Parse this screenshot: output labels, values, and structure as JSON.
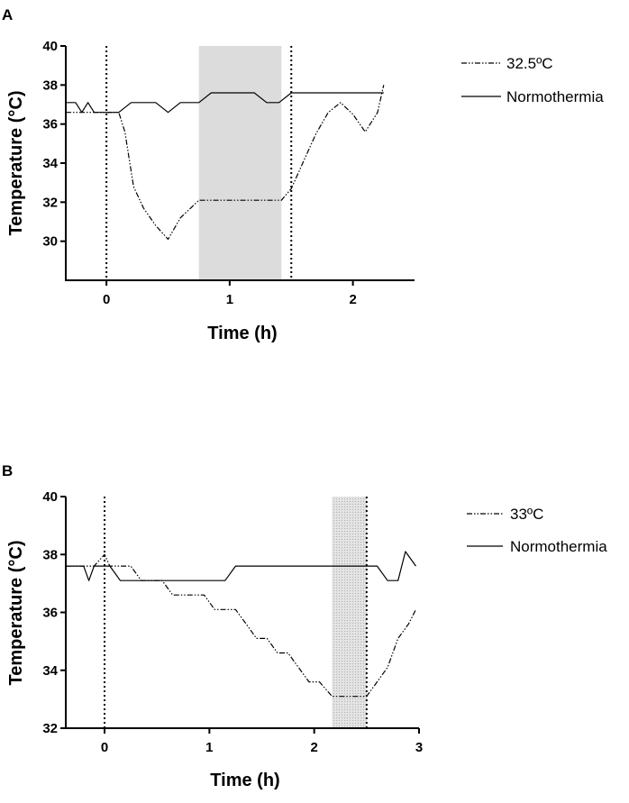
{
  "panels": [
    {
      "label": "A",
      "chart_data": {
        "type": "line",
        "title": "",
        "xlabel": "Time (h)",
        "ylabel": "Temperature (°C)",
        "xlim": [
          -0.33,
          2.5
        ],
        "ylim": [
          28,
          40
        ],
        "xticks": [
          0,
          1,
          2
        ],
        "yticks": [
          30,
          32,
          34,
          36,
          38,
          40
        ],
        "vlines": [
          0,
          1.5
        ],
        "shade": {
          "x0": 0.75,
          "x1": 1.42,
          "color": "#dcdcdc",
          "pattern": "solid"
        },
        "series": [
          {
            "name": "32.5ºC",
            "style": "dashdot",
            "x": [
              -0.33,
              0.1,
              0.15,
              0.22,
              0.3,
              0.4,
              0.5,
              0.6,
              0.7,
              0.75,
              0.85,
              1.0,
              1.2,
              1.42,
              1.5,
              1.55,
              1.6,
              1.7,
              1.8,
              1.9,
              2.0,
              2.1,
              2.2,
              2.25
            ],
            "values": [
              36.6,
              36.6,
              35.6,
              32.8,
              31.7,
              30.8,
              30.1,
              31.2,
              31.8,
              32.1,
              32.1,
              32.1,
              32.1,
              32.1,
              32.7,
              33.4,
              34.1,
              35.5,
              36.6,
              37.1,
              36.5,
              35.6,
              36.6,
              38.0
            ]
          },
          {
            "name": "Normothermia",
            "style": "solid",
            "x": [
              -0.33,
              -0.25,
              -0.2,
              -0.15,
              -0.1,
              -0.05,
              0.0,
              0.1,
              0.2,
              0.4,
              0.5,
              0.6,
              0.75,
              0.85,
              1.2,
              1.3,
              1.4,
              1.5,
              2.25
            ],
            "values": [
              37.1,
              37.1,
              36.6,
              37.1,
              36.6,
              36.6,
              36.6,
              36.6,
              37.1,
              37.1,
              36.6,
              37.1,
              37.1,
              37.6,
              37.6,
              37.1,
              37.1,
              37.6,
              37.6
            ]
          }
        ]
      }
    },
    {
      "label": "B",
      "chart_data": {
        "type": "line",
        "title": "",
        "xlabel": "Time (h)",
        "ylabel": "Temperature (°C)",
        "xlim": [
          -0.37,
          3.0
        ],
        "ylim": [
          32,
          40
        ],
        "xticks": [
          0,
          1,
          2,
          3
        ],
        "yticks": [
          32,
          34,
          36,
          38,
          40
        ],
        "vlines": [
          0,
          2.5
        ],
        "shade": {
          "x0": 2.17,
          "x1": 2.5,
          "color": "#e6e6e6",
          "pattern": "dotted"
        },
        "series": [
          {
            "name": "33ºC",
            "style": "dashdot",
            "x": [
              -0.37,
              -0.1,
              0.0,
              0.05,
              0.15,
              0.25,
              0.35,
              0.45,
              0.55,
              0.65,
              0.75,
              0.85,
              0.95,
              1.05,
              1.15,
              1.25,
              1.35,
              1.45,
              1.55,
              1.65,
              1.75,
              1.85,
              1.95,
              2.05,
              2.17,
              2.3,
              2.5,
              2.6,
              2.7,
              2.8,
              2.9,
              2.97
            ],
            "values": [
              37.6,
              37.6,
              38.0,
              37.6,
              37.6,
              37.6,
              37.1,
              37.1,
              37.1,
              36.6,
              36.6,
              36.6,
              36.6,
              36.1,
              36.1,
              36.1,
              35.6,
              35.1,
              35.1,
              34.6,
              34.6,
              34.1,
              33.6,
              33.6,
              33.1,
              33.1,
              33.1,
              33.6,
              34.1,
              35.1,
              35.6,
              36.1
            ]
          },
          {
            "name": "Normothermia",
            "style": "solid",
            "x": [
              -0.37,
              -0.2,
              -0.15,
              -0.1,
              0.0,
              0.05,
              0.15,
              0.3,
              1.15,
              1.25,
              2.6,
              2.7,
              2.8,
              2.87,
              2.97
            ],
            "values": [
              37.6,
              37.6,
              37.1,
              37.6,
              37.6,
              37.6,
              37.1,
              37.1,
              37.1,
              37.6,
              37.6,
              37.1,
              37.1,
              38.1,
              37.6
            ]
          }
        ]
      }
    }
  ]
}
